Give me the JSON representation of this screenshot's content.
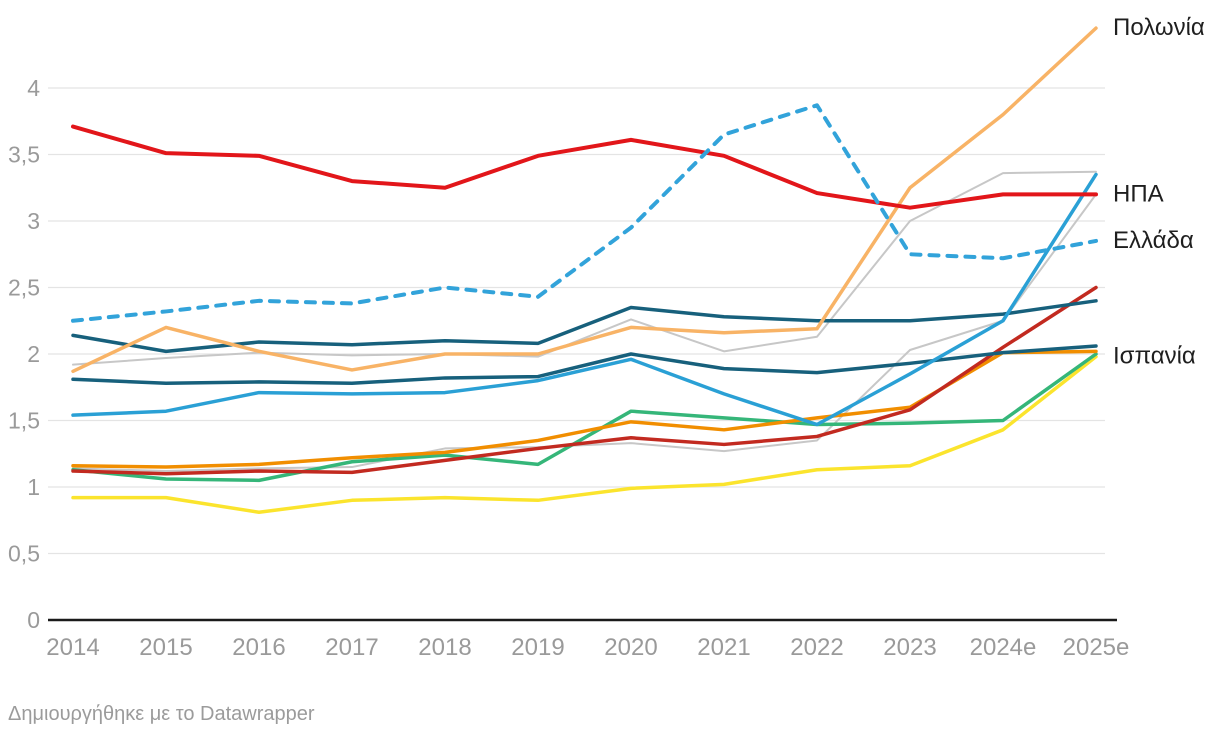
{
  "chart_data": {
    "type": "line",
    "title": "",
    "x_categories": [
      "2014",
      "2015",
      "2016",
      "2017",
      "2018",
      "2019",
      "2020",
      "2021",
      "2022",
      "2023",
      "2024e",
      "2025e"
    ],
    "ylim": [
      0,
      4.6
    ],
    "grid": "horizontal",
    "legend_position": "direct-labels-right",
    "yticks": [
      {
        "value": 0,
        "label": "0"
      },
      {
        "value": 0.5,
        "label": "0,5"
      },
      {
        "value": 1,
        "label": "1"
      },
      {
        "value": 1.5,
        "label": "1,5"
      },
      {
        "value": 2,
        "label": "2"
      },
      {
        "value": 2.5,
        "label": "2,5"
      },
      {
        "value": 3,
        "label": "3"
      },
      {
        "value": 3.5,
        "label": "3,5"
      },
      {
        "value": 4,
        "label": "4"
      }
    ],
    "series": [
      {
        "id": "gray-a",
        "label": null,
        "color": "#c7c7c7",
        "width": 2,
        "dashed": false,
        "values": [
          1.92,
          1.97,
          2.01,
          1.99,
          2.0,
          1.98,
          2.26,
          2.02,
          2.13,
          3.0,
          3.36,
          3.37
        ]
      },
      {
        "id": "gray-b",
        "label": null,
        "color": "#c7c7c7",
        "width": 2,
        "dashed": false,
        "values": [
          1.14,
          1.12,
          1.14,
          1.15,
          1.29,
          1.3,
          1.33,
          1.27,
          1.35,
          2.03,
          2.25,
          3.2
        ]
      },
      {
        "id": "yellow",
        "label": "Ισπανία",
        "color": "#fbe42d",
        "width": 3.5,
        "dashed": false,
        "values": [
          0.92,
          0.92,
          0.81,
          0.9,
          0.92,
          0.9,
          0.99,
          1.02,
          1.13,
          1.16,
          1.43,
          1.98
        ]
      },
      {
        "id": "green",
        "label": null,
        "color": "#35b679",
        "width": 3.5,
        "dashed": false,
        "values": [
          1.13,
          1.06,
          1.05,
          1.19,
          1.24,
          1.17,
          1.57,
          1.52,
          1.47,
          1.48,
          1.5,
          2.0
        ]
      },
      {
        "id": "orange",
        "label": null,
        "color": "#f18e00",
        "width": 3.5,
        "dashed": false,
        "values": [
          1.16,
          1.15,
          1.17,
          1.22,
          1.26,
          1.35,
          1.49,
          1.43,
          1.52,
          1.6,
          2.01,
          2.02
        ]
      },
      {
        "id": "crimson",
        "label": null,
        "color": "#c22a20",
        "width": 3.5,
        "dashed": false,
        "values": [
          1.12,
          1.1,
          1.12,
          1.11,
          1.2,
          1.29,
          1.37,
          1.32,
          1.38,
          1.58,
          2.05,
          2.5
        ]
      },
      {
        "id": "navy-b",
        "label": null,
        "color": "#17607c",
        "width": 3.5,
        "dashed": false,
        "values": [
          1.81,
          1.78,
          1.79,
          1.78,
          1.82,
          1.83,
          2.0,
          1.89,
          1.86,
          1.93,
          2.01,
          2.06
        ]
      },
      {
        "id": "navy-a",
        "label": null,
        "color": "#17607c",
        "width": 3.5,
        "dashed": false,
        "values": [
          2.14,
          2.02,
          2.09,
          2.07,
          2.1,
          2.08,
          2.35,
          2.28,
          2.25,
          2.25,
          2.3,
          2.4
        ]
      },
      {
        "id": "cyan",
        "label": null,
        "color": "#2aa0d5",
        "width": 3.5,
        "dashed": false,
        "values": [
          1.54,
          1.57,
          1.71,
          1.7,
          1.71,
          1.8,
          1.96,
          1.7,
          1.47,
          1.85,
          2.25,
          3.35
        ]
      },
      {
        "id": "peach",
        "label": "Πολωνία",
        "color": "#f8b366",
        "width": 3.5,
        "dashed": false,
        "values": [
          1.87,
          2.2,
          2.02,
          1.88,
          2.0,
          2.0,
          2.2,
          2.16,
          2.19,
          3.25,
          3.8,
          4.45
        ]
      },
      {
        "id": "red",
        "label": "ΗΠΑ",
        "color": "#e2161a",
        "width": 4,
        "dashed": false,
        "values": [
          3.71,
          3.51,
          3.49,
          3.3,
          3.25,
          3.49,
          3.61,
          3.49,
          3.21,
          3.1,
          3.2,
          3.2
        ]
      },
      {
        "id": "dashed-blue",
        "label": "Ελλάδα",
        "color": "#32a3da",
        "width": 4,
        "dashed": true,
        "values": [
          2.25,
          2.32,
          2.4,
          2.38,
          2.5,
          2.43,
          2.95,
          3.65,
          3.87,
          2.75,
          2.72,
          2.85
        ]
      }
    ],
    "style": {
      "gridline_color": "#e4e4e4",
      "axis_color": "#1a1a1a",
      "tick_label_color": "#9a9a9a",
      "series_label_color": "#1f1f1f"
    }
  },
  "footer": {
    "attribution": "Δημιουργήθηκε με το Datawrapper"
  }
}
